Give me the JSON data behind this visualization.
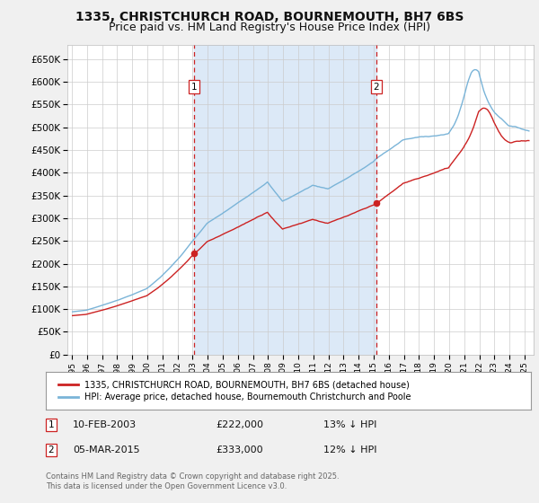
{
  "title1": "1335, CHRISTCHURCH ROAD, BOURNEMOUTH, BH7 6BS",
  "title2": "Price paid vs. HM Land Registry's House Price Index (HPI)",
  "plot_bg": "#ffffff",
  "fig_bg": "#f0f0f0",
  "shade_color": "#dce9f7",
  "grid_color": "#cccccc",
  "ylim": [
    0,
    680000
  ],
  "yticks": [
    0,
    50000,
    100000,
    150000,
    200000,
    250000,
    300000,
    350000,
    400000,
    450000,
    500000,
    550000,
    600000,
    650000
  ],
  "ytick_labels": [
    "£0",
    "£50K",
    "£100K",
    "£150K",
    "£200K",
    "£250K",
    "£300K",
    "£350K",
    "£400K",
    "£450K",
    "£500K",
    "£550K",
    "£600K",
    "£650K"
  ],
  "sale1_date": 2003.11,
  "sale1_price": 222000,
  "sale2_date": 2015.17,
  "sale2_price": 333000,
  "legend_line1": "1335, CHRISTCHURCH ROAD, BOURNEMOUTH, BH7 6BS (detached house)",
  "legend_line2": "HPI: Average price, detached house, Bournemouth Christchurch and Poole",
  "table_row1": [
    "1",
    "10-FEB-2003",
    "£222,000",
    "13% ↓ HPI"
  ],
  "table_row2": [
    "2",
    "05-MAR-2015",
    "£333,000",
    "12% ↓ HPI"
  ],
  "footnote": "Contains HM Land Registry data © Crown copyright and database right 2025.\nThis data is licensed under the Open Government Licence v3.0.",
  "hpi_color": "#7ab4d8",
  "paid_color": "#cc2222",
  "vline_color": "#cc2222",
  "title_fontsize": 10,
  "subtitle_fontsize": 9
}
